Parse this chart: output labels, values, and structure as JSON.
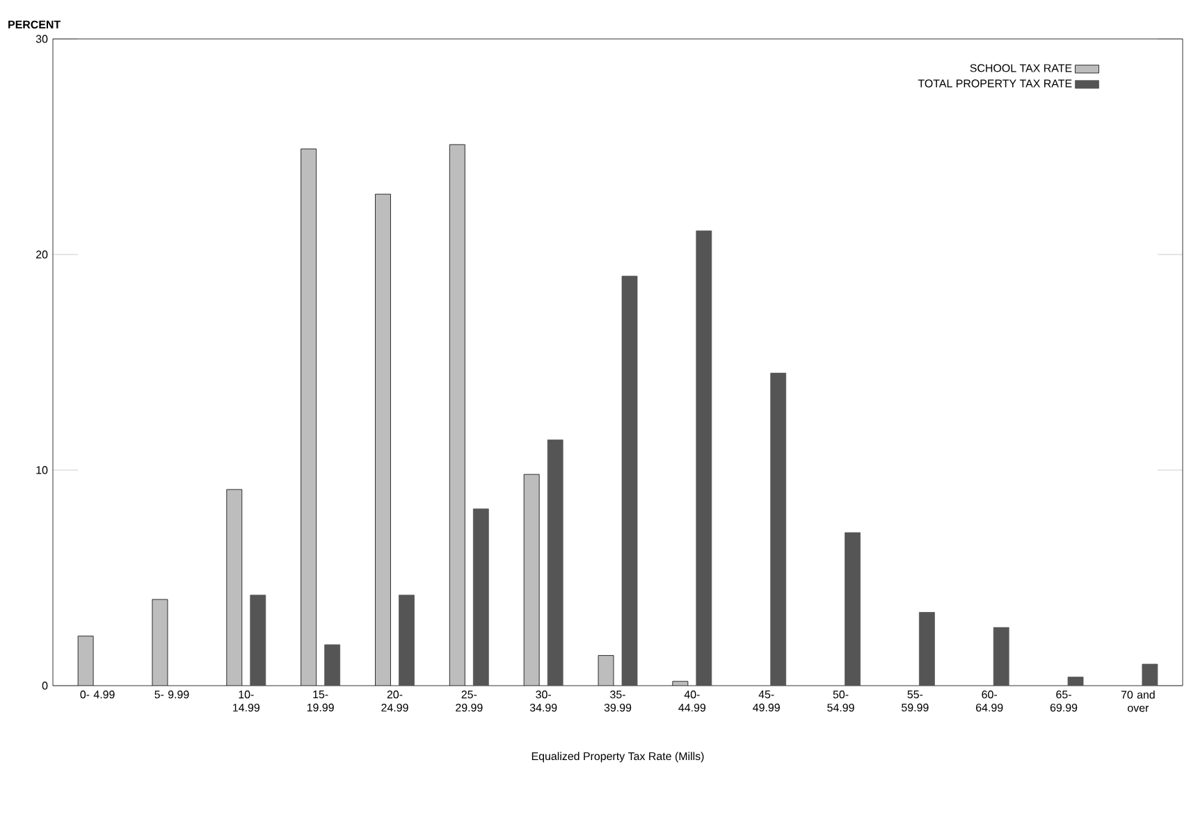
{
  "chart_data": {
    "type": "bar",
    "xlabel": "Equalized Property Tax Rate (Mills)",
    "ylabel": "PERCENT",
    "categories": [
      "0- 4.99",
      "5- 9.99",
      "10- 14.99",
      "15- 19.99",
      "20- 24.99",
      "25- 29.99",
      "30- 34.99",
      "35- 39.99",
      "40- 44.99",
      "45- 49.99",
      "50- 54.99",
      "55- 59.99",
      "60- 64.99",
      "65- 69.99",
      "70 and over"
    ],
    "series": [
      {
        "name": "SCHOOL TAX RATE",
        "color": "#bdbdbd",
        "values": [
          2.3,
          4.0,
          9.1,
          24.9,
          22.8,
          25.1,
          9.8,
          1.4,
          0.2,
          null,
          null,
          null,
          null,
          null,
          null
        ]
      },
      {
        "name": "TOTAL PROPERTY TAX RATE",
        "color": "#555555",
        "values": [
          null,
          null,
          4.2,
          1.9,
          4.2,
          8.2,
          11.4,
          19.0,
          21.1,
          14.5,
          7.1,
          3.4,
          2.7,
          0.4,
          1.0
        ]
      }
    ],
    "ylim": [
      0,
      30
    ],
    "yticks": [
      0,
      10,
      20,
      30
    ],
    "grid": false,
    "legend": "top right"
  }
}
